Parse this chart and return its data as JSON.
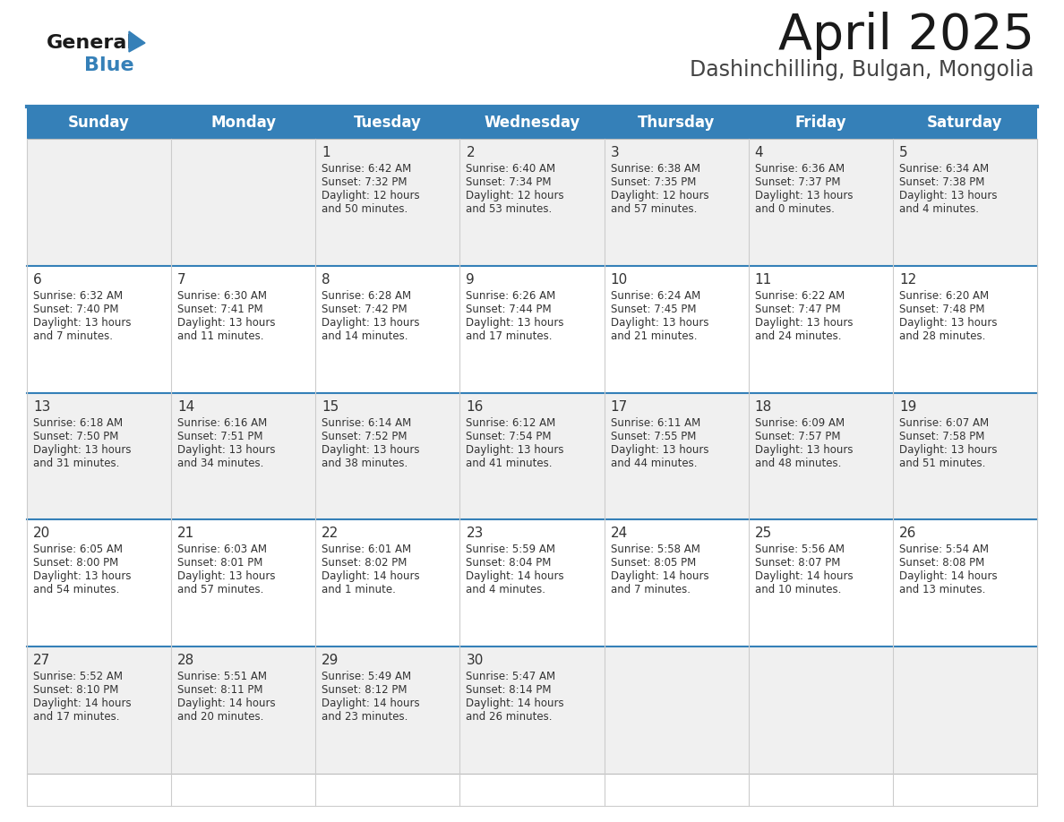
{
  "title": "April 2025",
  "subtitle": "Dashinchilling, Bulgan, Mongolia",
  "header_bg_color": "#3580B8",
  "header_text_color": "#FFFFFF",
  "row_bg_even": "#F0F0F0",
  "row_bg_odd": "#FFFFFF",
  "border_color": "#3580B8",
  "text_color": "#333333",
  "day_names": [
    "Sunday",
    "Monday",
    "Tuesday",
    "Wednesday",
    "Thursday",
    "Friday",
    "Saturday"
  ],
  "logo_general_color": "#1A1A1A",
  "logo_blue_color": "#3580B8",
  "days": [
    {
      "date": 1,
      "col": 2,
      "row": 0,
      "sunrise": "6:42 AM",
      "sunset": "7:32 PM",
      "daylight_hours": 12,
      "daylight_minutes": 50
    },
    {
      "date": 2,
      "col": 3,
      "row": 0,
      "sunrise": "6:40 AM",
      "sunset": "7:34 PM",
      "daylight_hours": 12,
      "daylight_minutes": 53
    },
    {
      "date": 3,
      "col": 4,
      "row": 0,
      "sunrise": "6:38 AM",
      "sunset": "7:35 PM",
      "daylight_hours": 12,
      "daylight_minutes": 57
    },
    {
      "date": 4,
      "col": 5,
      "row": 0,
      "sunrise": "6:36 AM",
      "sunset": "7:37 PM",
      "daylight_hours": 13,
      "daylight_minutes": 0
    },
    {
      "date": 5,
      "col": 6,
      "row": 0,
      "sunrise": "6:34 AM",
      "sunset": "7:38 PM",
      "daylight_hours": 13,
      "daylight_minutes": 4
    },
    {
      "date": 6,
      "col": 0,
      "row": 1,
      "sunrise": "6:32 AM",
      "sunset": "7:40 PM",
      "daylight_hours": 13,
      "daylight_minutes": 7
    },
    {
      "date": 7,
      "col": 1,
      "row": 1,
      "sunrise": "6:30 AM",
      "sunset": "7:41 PM",
      "daylight_hours": 13,
      "daylight_minutes": 11
    },
    {
      "date": 8,
      "col": 2,
      "row": 1,
      "sunrise": "6:28 AM",
      "sunset": "7:42 PM",
      "daylight_hours": 13,
      "daylight_minutes": 14
    },
    {
      "date": 9,
      "col": 3,
      "row": 1,
      "sunrise": "6:26 AM",
      "sunset": "7:44 PM",
      "daylight_hours": 13,
      "daylight_minutes": 17
    },
    {
      "date": 10,
      "col": 4,
      "row": 1,
      "sunrise": "6:24 AM",
      "sunset": "7:45 PM",
      "daylight_hours": 13,
      "daylight_minutes": 21
    },
    {
      "date": 11,
      "col": 5,
      "row": 1,
      "sunrise": "6:22 AM",
      "sunset": "7:47 PM",
      "daylight_hours": 13,
      "daylight_minutes": 24
    },
    {
      "date": 12,
      "col": 6,
      "row": 1,
      "sunrise": "6:20 AM",
      "sunset": "7:48 PM",
      "daylight_hours": 13,
      "daylight_minutes": 28
    },
    {
      "date": 13,
      "col": 0,
      "row": 2,
      "sunrise": "6:18 AM",
      "sunset": "7:50 PM",
      "daylight_hours": 13,
      "daylight_minutes": 31
    },
    {
      "date": 14,
      "col": 1,
      "row": 2,
      "sunrise": "6:16 AM",
      "sunset": "7:51 PM",
      "daylight_hours": 13,
      "daylight_minutes": 34
    },
    {
      "date": 15,
      "col": 2,
      "row": 2,
      "sunrise": "6:14 AM",
      "sunset": "7:52 PM",
      "daylight_hours": 13,
      "daylight_minutes": 38
    },
    {
      "date": 16,
      "col": 3,
      "row": 2,
      "sunrise": "6:12 AM",
      "sunset": "7:54 PM",
      "daylight_hours": 13,
      "daylight_minutes": 41
    },
    {
      "date": 17,
      "col": 4,
      "row": 2,
      "sunrise": "6:11 AM",
      "sunset": "7:55 PM",
      "daylight_hours": 13,
      "daylight_minutes": 44
    },
    {
      "date": 18,
      "col": 5,
      "row": 2,
      "sunrise": "6:09 AM",
      "sunset": "7:57 PM",
      "daylight_hours": 13,
      "daylight_minutes": 48
    },
    {
      "date": 19,
      "col": 6,
      "row": 2,
      "sunrise": "6:07 AM",
      "sunset": "7:58 PM",
      "daylight_hours": 13,
      "daylight_minutes": 51
    },
    {
      "date": 20,
      "col": 0,
      "row": 3,
      "sunrise": "6:05 AM",
      "sunset": "8:00 PM",
      "daylight_hours": 13,
      "daylight_minutes": 54
    },
    {
      "date": 21,
      "col": 1,
      "row": 3,
      "sunrise": "6:03 AM",
      "sunset": "8:01 PM",
      "daylight_hours": 13,
      "daylight_minutes": 57
    },
    {
      "date": 22,
      "col": 2,
      "row": 3,
      "sunrise": "6:01 AM",
      "sunset": "8:02 PM",
      "daylight_hours": 14,
      "daylight_minutes": 1
    },
    {
      "date": 23,
      "col": 3,
      "row": 3,
      "sunrise": "5:59 AM",
      "sunset": "8:04 PM",
      "daylight_hours": 14,
      "daylight_minutes": 4
    },
    {
      "date": 24,
      "col": 4,
      "row": 3,
      "sunrise": "5:58 AM",
      "sunset": "8:05 PM",
      "daylight_hours": 14,
      "daylight_minutes": 7
    },
    {
      "date": 25,
      "col": 5,
      "row": 3,
      "sunrise": "5:56 AM",
      "sunset": "8:07 PM",
      "daylight_hours": 14,
      "daylight_minutes": 10
    },
    {
      "date": 26,
      "col": 6,
      "row": 3,
      "sunrise": "5:54 AM",
      "sunset": "8:08 PM",
      "daylight_hours": 14,
      "daylight_minutes": 13
    },
    {
      "date": 27,
      "col": 0,
      "row": 4,
      "sunrise": "5:52 AM",
      "sunset": "8:10 PM",
      "daylight_hours": 14,
      "daylight_minutes": 17
    },
    {
      "date": 28,
      "col": 1,
      "row": 4,
      "sunrise": "5:51 AM",
      "sunset": "8:11 PM",
      "daylight_hours": 14,
      "daylight_minutes": 20
    },
    {
      "date": 29,
      "col": 2,
      "row": 4,
      "sunrise": "5:49 AM",
      "sunset": "8:12 PM",
      "daylight_hours": 14,
      "daylight_minutes": 23
    },
    {
      "date": 30,
      "col": 3,
      "row": 4,
      "sunrise": "5:47 AM",
      "sunset": "8:14 PM",
      "daylight_hours": 14,
      "daylight_minutes": 26
    }
  ]
}
